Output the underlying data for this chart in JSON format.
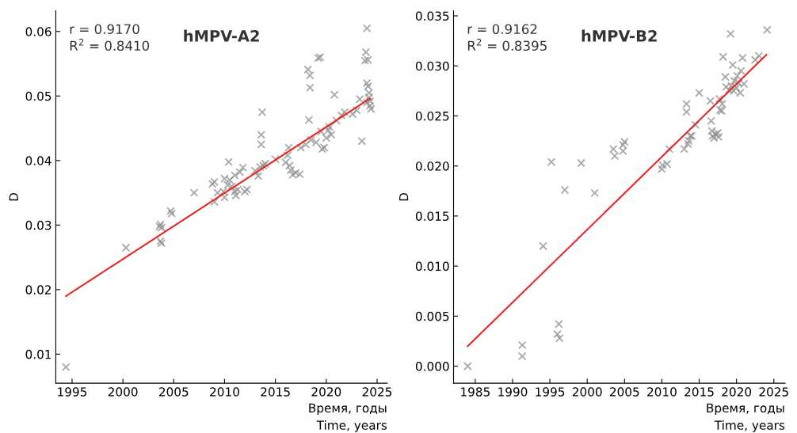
{
  "chart_data": [
    {
      "type": "scatter",
      "title": "hMPV-A2",
      "xlabel": "Время, годы\nTime, years",
      "ylabel": "D",
      "grid": false,
      "legend": false,
      "annotations": [
        "r = 0.9170",
        "R$^{2}$ = 0.8410"
      ],
      "xlim": [
        1993.4,
        2026
      ],
      "xticks": [
        1995,
        2000,
        2005,
        2010,
        2015,
        2020,
        2025
      ],
      "ylim": [
        0.0055,
        0.0632
      ],
      "yticks": [
        0.01,
        0.02,
        0.03,
        0.04,
        0.05,
        0.06
      ],
      "series": [
        {
          "marker": "cross",
          "color": "#8c8c8c",
          "x": [
            1994.4,
            2000.3,
            2003.6,
            2003.7,
            2003.8,
            2003.7,
            2003.8,
            2004.7,
            2004.8,
            2007,
            2008.8,
            2009,
            2009,
            2009.3,
            2009.9,
            2010,
            2010,
            2010.3,
            2010.4,
            2010.5,
            2010.7,
            2011,
            2011,
            2011.1,
            2011.3,
            2011.5,
            2011.8,
            2012,
            2012.2,
            2013,
            2013.3,
            2013.5,
            2013.6,
            2013.6,
            2013.7,
            2013.8,
            2014,
            2015,
            2016,
            2016.2,
            2016.3,
            2016.4,
            2016.5,
            2016.7,
            2017,
            2017.4,
            2017.5,
            2018,
            2018.3,
            2018.2,
            2018.4,
            2018.4,
            2018.5,
            2019,
            2019.2,
            2019.4,
            2019.5,
            2019.6,
            2019.8,
            2020,
            2020.2,
            2020.3,
            2020.5,
            2020.8,
            2021,
            2021.5,
            2021.8,
            2022.6,
            2023,
            2023.3,
            2023.5,
            2023.8,
            2023.9,
            2024,
            2024.1,
            2024,
            2024.1,
            2024.2,
            2024.2,
            2024.3,
            2024.3,
            2024.4,
            2024
          ],
          "values": [
            0.008,
            0.0265,
            0.0298,
            0.0301,
            0.0296,
            0.0275,
            0.0272,
            0.0322,
            0.0318,
            0.035,
            0.0364,
            0.0367,
            0.0336,
            0.035,
            0.0352,
            0.0343,
            0.0372,
            0.0362,
            0.0398,
            0.037,
            0.036,
            0.0377,
            0.0352,
            0.0346,
            0.0355,
            0.0382,
            0.0389,
            0.0352,
            0.0355,
            0.0384,
            0.0376,
            0.039,
            0.0425,
            0.044,
            0.0475,
            0.0392,
            0.0395,
            0.0402,
            0.0397,
            0.0408,
            0.042,
            0.0392,
            0.0385,
            0.0378,
            0.0381,
            0.0379,
            0.042,
            0.0425,
            0.0463,
            0.0541,
            0.0532,
            0.0513,
            0.0432,
            0.0428,
            0.0559,
            0.056,
            0.0445,
            0.0418,
            0.042,
            0.0435,
            0.0447,
            0.0452,
            0.044,
            0.0502,
            0.0462,
            0.047,
            0.0475,
            0.0472,
            0.0478,
            0.0495,
            0.043,
            0.0555,
            0.0568,
            0.0605,
            0.0556,
            0.052,
            0.0515,
            0.0505,
            0.0498,
            0.0492,
            0.0485,
            0.048,
            0.049
          ]
        },
        {
          "type": "line",
          "color": "#e8251f",
          "x": [
            1994.4,
            2024.3
          ],
          "values": [
            0.019,
            0.0496
          ]
        }
      ]
    },
    {
      "type": "scatter",
      "title": "hMPV-B2",
      "xlabel": "Время, годы\nTime, years",
      "ylabel": "D",
      "grid": false,
      "legend": false,
      "annotations": [
        "r = 0.9162",
        "R$^{2}$ = 0.8395"
      ],
      "xlim": [
        1982.1,
        2026.5
      ],
      "xticks": [
        1985,
        1990,
        1995,
        2000,
        2005,
        2010,
        2015,
        2020,
        2025
      ],
      "ylim": [
        -0.0017,
        0.0355
      ],
      "yticks": [
        {
          "value": 0,
          "label": "0.000"
        },
        {
          "value": 0.005,
          "label": "0.005"
        },
        {
          "value": 0.01,
          "label": "0.010"
        },
        {
          "value": 0.015,
          "label": "0.015"
        },
        {
          "value": 0.02,
          "label": "0.020"
        },
        {
          "value": 0.025,
          "label": "0.025"
        },
        {
          "value": 0.03,
          "label": "0.030"
        },
        {
          "value": 0.035,
          "label": "0.035"
        }
      ],
      "series": [
        {
          "marker": "cross",
          "color": "#8c8c8c",
          "x": [
            1984,
            1991.3,
            1991.3,
            1994.1,
            1995.2,
            1996,
            1996.2,
            1996.3,
            1997,
            1999.2,
            2001,
            2003.5,
            2003.7,
            2004.8,
            2004.8,
            2005,
            2010,
            2010.1,
            2010.7,
            2011,
            2013,
            2013.3,
            2013.3,
            2013.5,
            2013.6,
            2013.8,
            2014,
            2014.5,
            2015,
            2016.5,
            2016.6,
            2016.7,
            2016.8,
            2017,
            2017.2,
            2017.5,
            2017.6,
            2017.7,
            2017.8,
            2018,
            2018.1,
            2018.2,
            2018.5,
            2018.6,
            2019,
            2019.2,
            2019.3,
            2019.5,
            2019.6,
            2019.7,
            2020,
            2020.1,
            2020.3,
            2020.5,
            2020.6,
            2020.8,
            2021,
            2022.5,
            2023,
            2024.1
          ],
          "values": [
            0,
            0.001,
            0.0021,
            0.012,
            0.0204,
            0.0032,
            0.0042,
            0.0028,
            0.0176,
            0.0203,
            0.0173,
            0.0217,
            0.021,
            0.0215,
            0.0221,
            0.0224,
            0.0197,
            0.0201,
            0.0202,
            0.0217,
            0.0217,
            0.0262,
            0.0254,
            0.0222,
            0.0225,
            0.023,
            0.023,
            0.0241,
            0.0273,
            0.0265,
            0.0245,
            0.0235,
            0.023,
            0.0228,
            0.0232,
            0.0233,
            0.0229,
            0.0267,
            0.0256,
            0.0255,
            0.0262,
            0.0309,
            0.0289,
            0.0279,
            0.0276,
            0.0332,
            0.028,
            0.0301,
            0.0275,
            0.0285,
            0.0278,
            0.029,
            0.0283,
            0.0273,
            0.0295,
            0.0308,
            0.0282,
            0.0306,
            0.031,
            0.0336
          ]
        },
        {
          "type": "line",
          "color": "#e8251f",
          "x": [
            1984,
            2024
          ],
          "values": [
            0.002,
            0.0311
          ]
        }
      ]
    }
  ]
}
